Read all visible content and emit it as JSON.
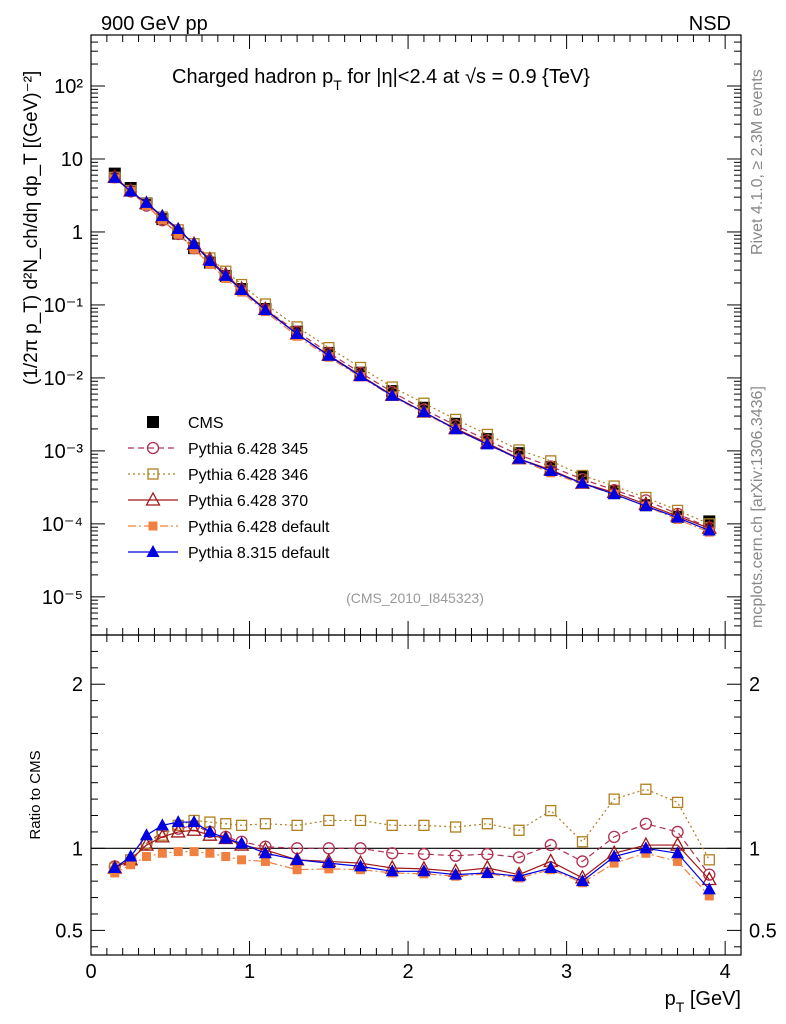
{
  "header": {
    "left": "900 GeV pp",
    "right": "NSD"
  },
  "side_labels": {
    "top": "Rivet 4.1.0, ≥ 2.3M events",
    "bottom": "mcplots.cern.ch [arXiv:1306.3436]"
  },
  "analysis_id": "(CMS_2010_I845323)",
  "chart_data": [
    {
      "type": "scatter",
      "panel": "main",
      "title": "Charged hadron p_T for |η|<2.4 at √s = 0.9 {TeV}",
      "title_parts": {
        "p": "Charged hadron p",
        "sub": "T",
        "q": " for |η|<2.4 at √",
        "r": "s = 0.9 {TeV}"
      },
      "ylabel": "(1/2π p_T) d²N_ch/dη dp_T [(GeV)⁻²]",
      "xlim": [
        0,
        4.1
      ],
      "ylim": [
        3e-06,
        500
      ],
      "yscale": "log",
      "y_ticks": [
        "10⁻⁵",
        "10⁻⁴",
        "10⁻³",
        "10⁻²",
        "10⁻¹",
        "1",
        "10",
        "10²"
      ],
      "x": [
        0.15,
        0.25,
        0.35,
        0.45,
        0.55,
        0.65,
        0.75,
        0.85,
        0.95,
        1.1,
        1.3,
        1.5,
        1.7,
        1.9,
        2.1,
        2.3,
        2.5,
        2.7,
        2.9,
        3.1,
        3.3,
        3.5,
        3.7,
        3.9
      ],
      "series": [
        {
          "name": "CMS",
          "marker": "square-filled",
          "color": "#000000",
          "line": "none",
          "values": [
            6.3,
            4.0,
            2.45,
            1.5,
            0.95,
            0.6,
            0.38,
            0.25,
            0.165,
            0.088,
            0.043,
            0.022,
            0.0118,
            0.0066,
            0.0039,
            0.00235,
            0.00145,
            0.00093,
            0.0006,
            0.00044,
            0.00028,
            0.00018,
            0.000125,
            0.000108
          ]
        },
        {
          "name": "Pythia 6.428 345",
          "marker": "circle-open",
          "color": "#b03050",
          "line": "dashed",
          "values": [
            5.6,
            3.6,
            2.3,
            1.45,
            0.94,
            0.6,
            0.38,
            0.25,
            0.16,
            0.087,
            0.043,
            0.022,
            0.0118,
            0.0064,
            0.0037,
            0.00224,
            0.0014,
            0.00088,
            0.00061,
            0.00041,
            0.00029,
            0.00021,
            0.000137,
            8.9e-05
          ]
        },
        {
          "name": "Pythia 6.428 346",
          "marker": "square-open",
          "color": "#b08020",
          "line": "dotted",
          "values": [
            5.6,
            3.7,
            2.45,
            1.6,
            1.07,
            0.69,
            0.44,
            0.29,
            0.19,
            0.103,
            0.05,
            0.026,
            0.0139,
            0.0075,
            0.0045,
            0.0027,
            0.00168,
            0.00103,
            0.00073,
            0.00046,
            0.00033,
            0.00023,
            0.000153,
            0.0001
          ]
        },
        {
          "name": "Pythia 6.428 370",
          "marker": "triangle-open",
          "color": "#a01818",
          "line": "solid",
          "values": [
            5.6,
            3.65,
            2.45,
            1.6,
            1.06,
            0.68,
            0.42,
            0.26,
            0.165,
            0.087,
            0.04,
            0.0205,
            0.0108,
            0.0058,
            0.0034,
            0.00202,
            0.00128,
            0.00078,
            0.00055,
            0.00036,
            0.00027,
            0.000185,
            0.000128,
            8.7e-05
          ]
        },
        {
          "name": "Pythia 6.428 default",
          "marker": "square-filled-small",
          "color": "#f08040",
          "line": "dashdot",
          "values": [
            5.35,
            3.6,
            2.3,
            1.46,
            0.93,
            0.58,
            0.36,
            0.23,
            0.15,
            0.081,
            0.0372,
            0.0192,
            0.0103,
            0.0056,
            0.0033,
            0.00195,
            0.00123,
            0.00076,
            0.0005,
            0.00035,
            0.000255,
            0.000175,
            0.000115,
            7.7e-05
          ]
        },
        {
          "name": "Pythia 8.315 default",
          "marker": "triangle-filled",
          "color": "#0000e0",
          "line": "solid",
          "values": [
            5.5,
            3.6,
            2.5,
            1.65,
            1.1,
            0.68,
            0.4,
            0.25,
            0.16,
            0.085,
            0.04,
            0.0201,
            0.0106,
            0.0057,
            0.0034,
            0.00198,
            0.00123,
            0.00078,
            0.00053,
            0.00036,
            0.000255,
            0.000175,
            0.000122,
            8.1e-05
          ]
        }
      ]
    },
    {
      "type": "line",
      "panel": "ratio",
      "xlabel": "p_T [GeV]",
      "xlabel_parts": {
        "p": "p",
        "sub": "T",
        "rest": " [GeV]"
      },
      "ylabel": "Ratio to CMS",
      "xlim": [
        0,
        4.1
      ],
      "x_ticks": [
        "0",
        "1",
        "2",
        "3",
        "4"
      ],
      "ylim": [
        0.35,
        2.3
      ],
      "y_ticks": [
        "0.5",
        "1",
        "2"
      ],
      "reference": 1.0,
      "x": [
        0.15,
        0.25,
        0.35,
        0.45,
        0.55,
        0.65,
        0.75,
        0.85,
        0.95,
        1.1,
        1.3,
        1.5,
        1.7,
        1.9,
        2.1,
        2.3,
        2.5,
        2.7,
        2.9,
        3.1,
        3.3,
        3.5,
        3.7,
        3.9
      ],
      "series": [
        {
          "name": "Pythia 6.428 345",
          "values": [
            0.89,
            0.92,
            1.03,
            1.1,
            1.12,
            1.14,
            1.1,
            1.07,
            1.04,
            1.01,
            1.0,
            1.0,
            1.0,
            0.97,
            0.965,
            0.955,
            0.965,
            0.945,
            1.02,
            0.92,
            1.07,
            1.15,
            1.1,
            0.84
          ]
        },
        {
          "name": "Pythia 6.428 346",
          "values": [
            0.88,
            0.93,
            1.03,
            1.08,
            1.14,
            1.17,
            1.16,
            1.15,
            1.14,
            1.15,
            1.14,
            1.17,
            1.17,
            1.14,
            1.14,
            1.13,
            1.15,
            1.11,
            1.23,
            1.04,
            1.3,
            1.36,
            1.28,
            0.93
          ]
        },
        {
          "name": "Pythia 6.428 370",
          "values": [
            0.88,
            0.93,
            1.02,
            1.07,
            1.1,
            1.11,
            1.08,
            1.06,
            1.02,
            0.99,
            0.93,
            0.92,
            0.91,
            0.88,
            0.875,
            0.86,
            0.88,
            0.84,
            0.92,
            0.82,
            0.97,
            1.02,
            1.02,
            0.81
          ]
        },
        {
          "name": "Pythia 6.428 default",
          "values": [
            0.85,
            0.9,
            0.95,
            0.97,
            0.98,
            0.98,
            0.97,
            0.95,
            0.93,
            0.92,
            0.87,
            0.875,
            0.87,
            0.85,
            0.845,
            0.83,
            0.845,
            0.82,
            0.87,
            0.79,
            0.91,
            0.97,
            0.92,
            0.71
          ]
        },
        {
          "name": "Pythia 8.315 default",
          "values": [
            0.88,
            0.95,
            1.08,
            1.14,
            1.16,
            1.16,
            1.1,
            1.06,
            1.03,
            0.97,
            0.93,
            0.91,
            0.89,
            0.86,
            0.86,
            0.84,
            0.85,
            0.83,
            0.88,
            0.8,
            0.95,
            1.0,
            0.97,
            0.75
          ]
        }
      ]
    }
  ]
}
